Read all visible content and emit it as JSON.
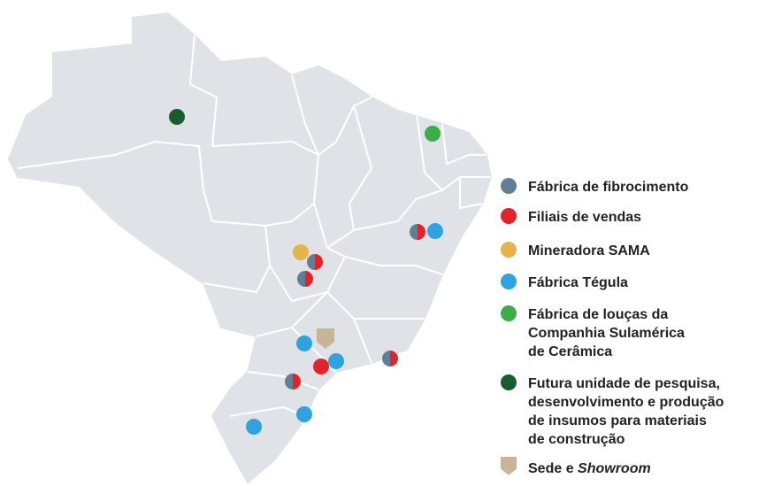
{
  "legend": {
    "items": [
      {
        "color": "#607f96",
        "lines": [
          "Fábrica de fibrocimento"
        ]
      },
      {
        "color": "#e3232a",
        "lines": [
          "Filiais de vendas"
        ]
      },
      {
        "color": "#e6b54a",
        "lines": [
          "Mineradora SAMA"
        ]
      },
      {
        "color": "#2ea3e0",
        "lines": [
          "Fábrica Tégula"
        ]
      },
      {
        "color": "#3cae49",
        "lines": [
          "Fábrica de louças da",
          "Companhia Sulamérica",
          "de Cerâmica"
        ]
      },
      {
        "color": "#1a5c30",
        "lines": [
          "Futura unidade de pesquisa,",
          "desenvolvimento e produção",
          "de insumos para materiais",
          "de construção"
        ]
      },
      {
        "color": "#c8b496",
        "lines": [
          "Sede e "
        ],
        "emphasis": "Showroom"
      }
    ]
  }
}
